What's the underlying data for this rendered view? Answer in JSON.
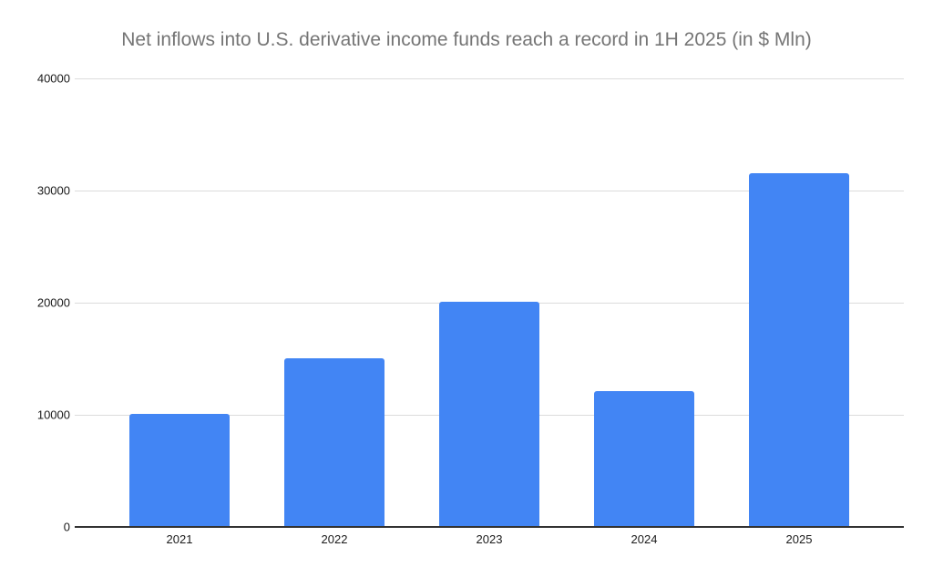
{
  "title": "Net inflows into U.S. derivative income funds reach a record in 1H 2025 (in $ Mln)",
  "colors": {
    "bar": "#4285f4",
    "title_text": "#757575",
    "axis_line": "#333333",
    "gridline": "#dcdcdc",
    "tick_label": "#1a1a1a",
    "background": "#ffffff"
  },
  "chart_data": {
    "type": "bar",
    "categories": [
      "2021",
      "2022",
      "2023",
      "2024",
      "2025"
    ],
    "values": [
      10000,
      15000,
      20000,
      12000,
      31500
    ],
    "title": "Net inflows into U.S. derivative income funds reach a record in 1H 2025 (in $ Mln)",
    "xlabel": "",
    "ylabel": "",
    "ylim": [
      0,
      40000
    ],
    "y_ticks": [
      0,
      10000,
      20000,
      30000,
      40000
    ],
    "grid": true,
    "legend": "none"
  }
}
